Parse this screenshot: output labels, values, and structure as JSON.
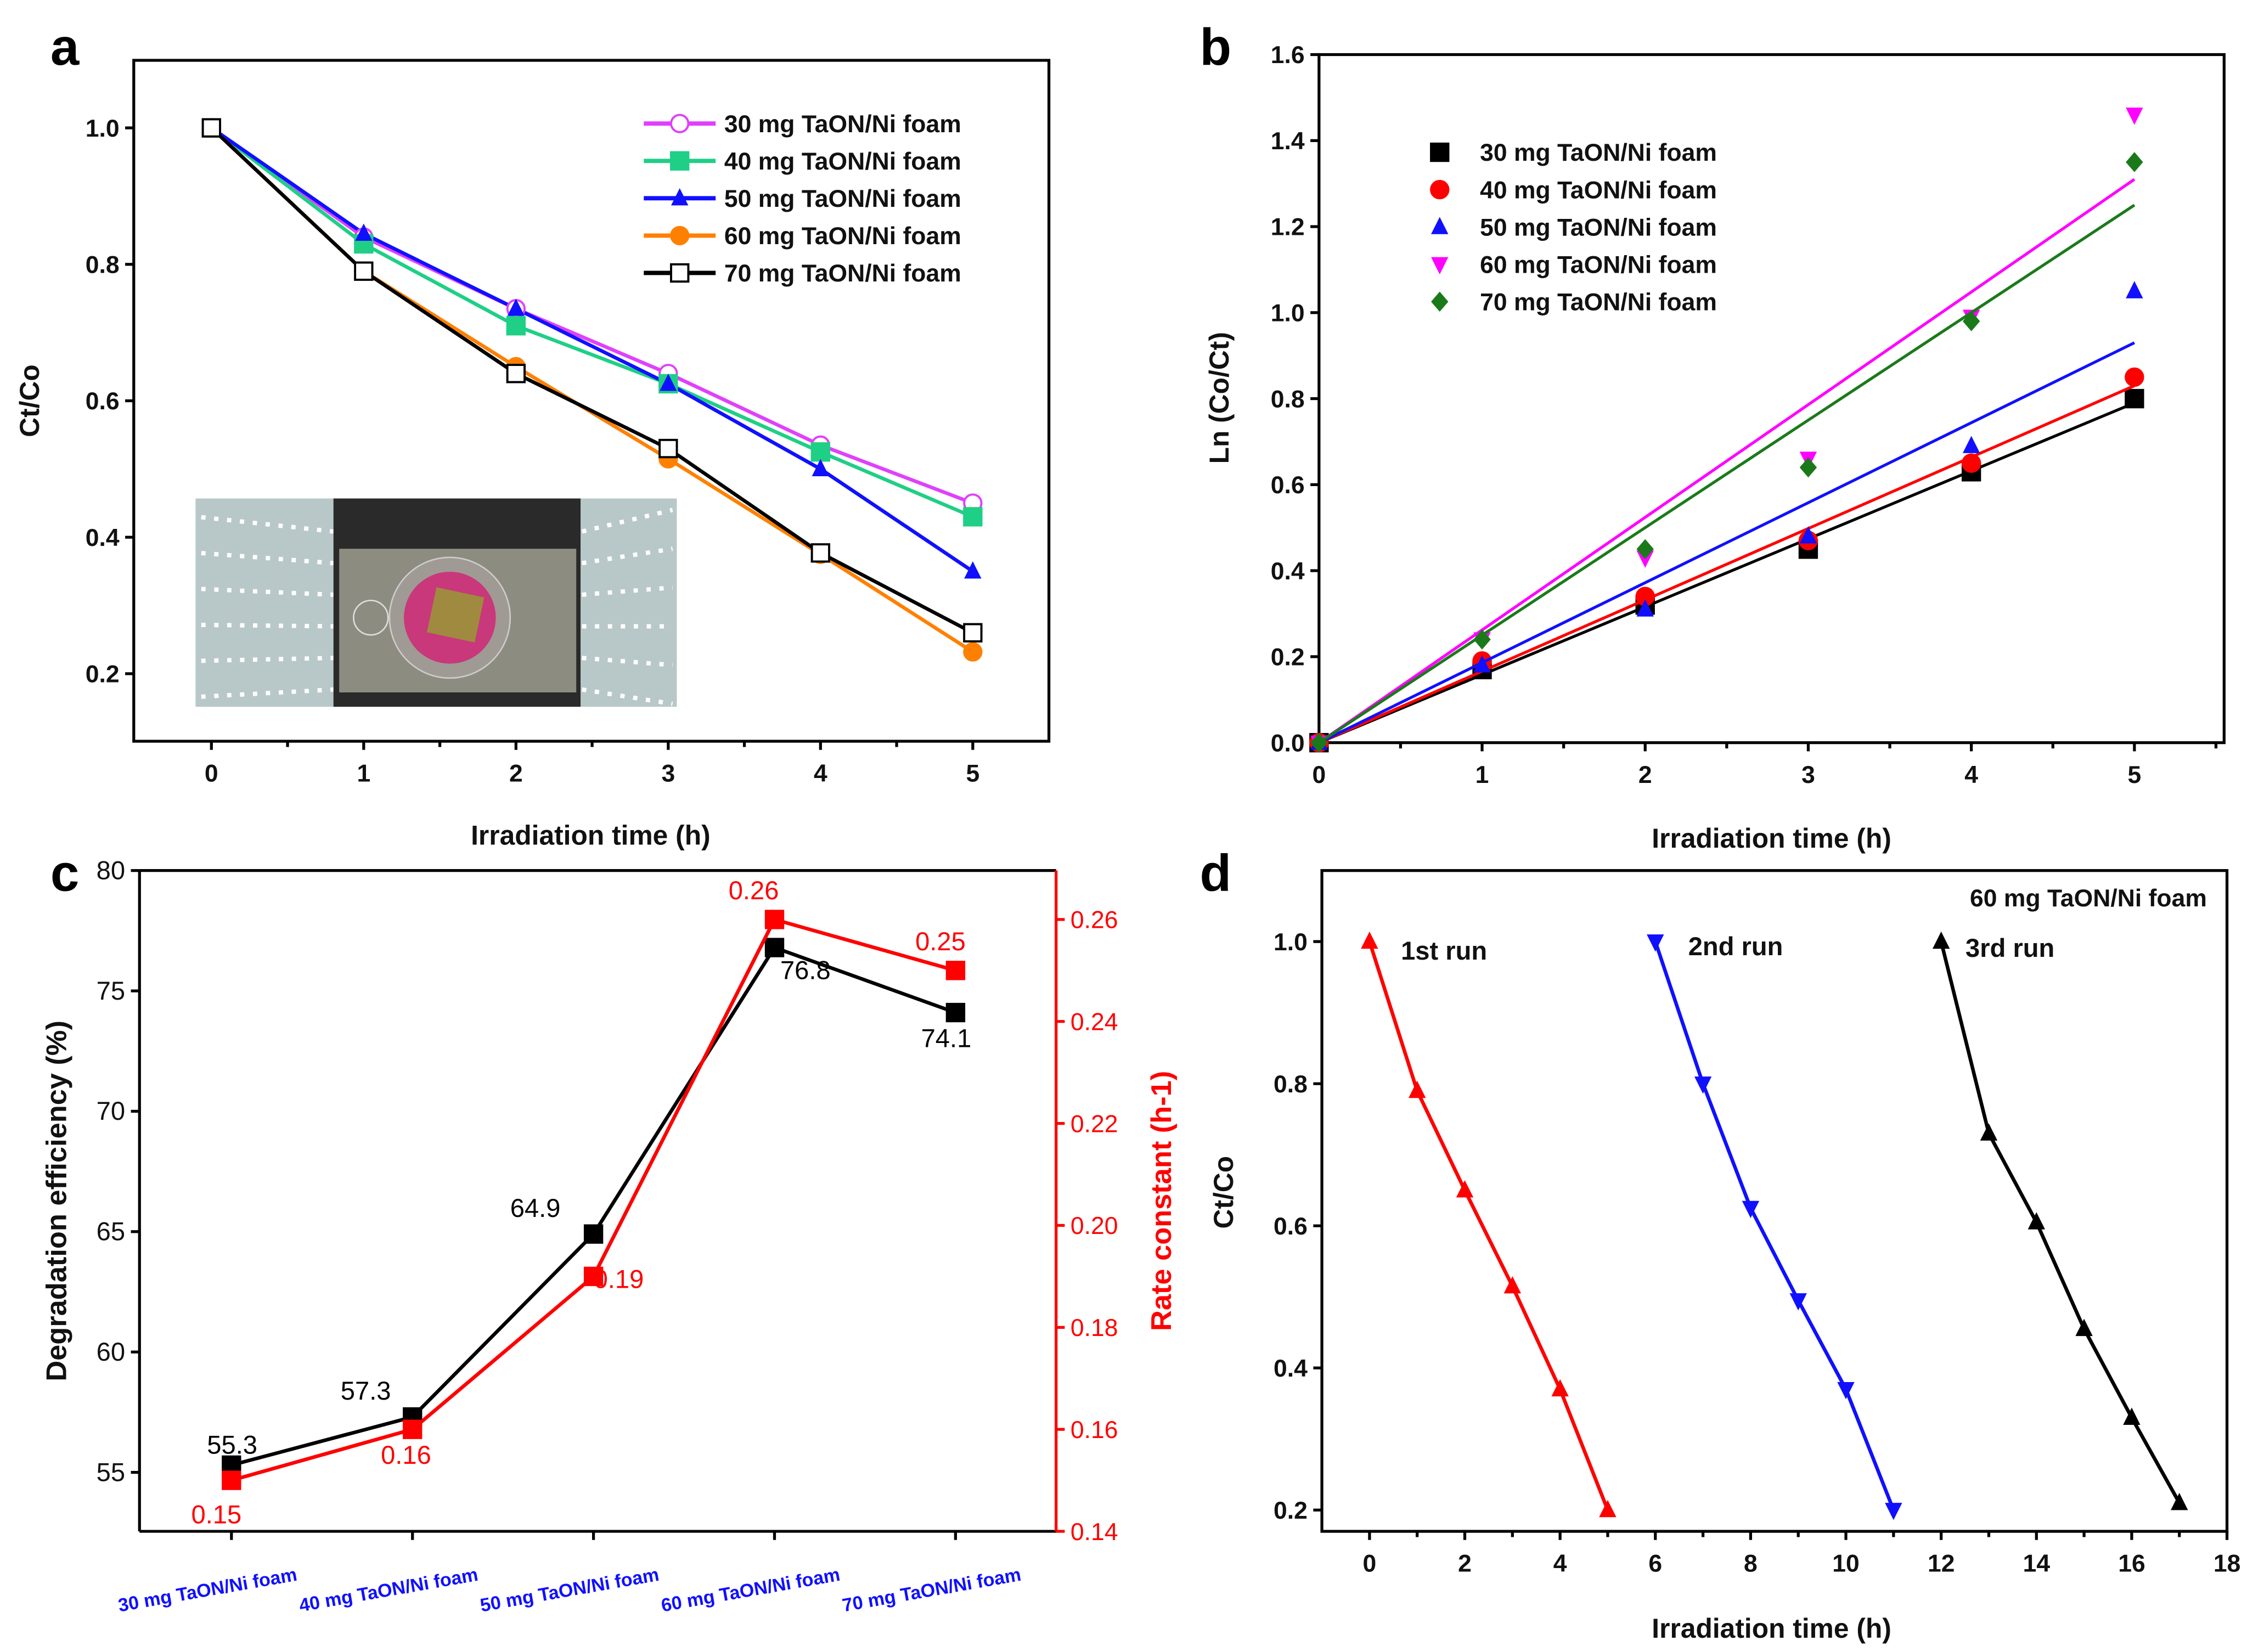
{
  "chart_data": [
    {
      "panel": "a",
      "type": "line",
      "xlabel": "Irradiation time (h)",
      "ylabel": "Ct/Co",
      "xlim": [
        -0.51,
        5.5
      ],
      "ylim": [
        0.101,
        1.099
      ],
      "xticks": [
        0,
        1,
        2,
        3,
        4,
        5
      ],
      "yticks": [
        0.2,
        0.4,
        0.6,
        0.8,
        1.0
      ],
      "legend_position": "top-right",
      "inset": "photo of reactor with TaON/Ni foam sample",
      "x": [
        0,
        1,
        2,
        3,
        4,
        5
      ],
      "series": [
        {
          "name": "30 mg TaON/Ni foam",
          "color": "#e040fb",
          "marker": "open-circle",
          "values": [
            1.0,
            0.84,
            0.735,
            0.64,
            0.535,
            0.45
          ]
        },
        {
          "name": "40 mg TaON/Ni foam",
          "color": "#1fcf86",
          "marker": "square",
          "values": [
            1.0,
            0.83,
            0.71,
            0.625,
            0.525,
            0.43
          ]
        },
        {
          "name": "50 mg TaON/Ni foam",
          "color": "#1010ff",
          "marker": "triangle",
          "values": [
            1.0,
            0.845,
            0.735,
            0.625,
            0.5,
            0.35
          ]
        },
        {
          "name": "60 mg TaON/Ni foam",
          "color": "#ff8000",
          "marker": "circle",
          "values": [
            1.0,
            0.79,
            0.65,
            0.515,
            0.375,
            0.232
          ]
        },
        {
          "name": "70 mg TaON/Ni foam",
          "color": "#000000",
          "marker": "open-square",
          "values": [
            1.0,
            0.79,
            0.64,
            0.53,
            0.377,
            0.26
          ]
        }
      ]
    },
    {
      "panel": "b",
      "type": "scatter",
      "xlabel": "Irradiation time (h)",
      "ylabel": "Ln (Co/Ct)",
      "xlim": [
        0,
        5.55
      ],
      "ylim": [
        0,
        1.6
      ],
      "xticks": [
        0,
        1,
        2,
        3,
        4,
        5
      ],
      "yticks": [
        0.0,
        0.2,
        0.4,
        0.6,
        0.8,
        1.0,
        1.2,
        1.4,
        1.6
      ],
      "legend_position": "top-left",
      "x": [
        0,
        1,
        2,
        3,
        4,
        5
      ],
      "series": [
        {
          "name": "30 mg TaON/Ni foam",
          "color": "#000000",
          "marker": "square",
          "values": [
            0,
            0.17,
            0.32,
            0.45,
            0.63,
            0.8
          ],
          "fit_slope": 0.158
        },
        {
          "name": "40 mg TaON/Ni foam",
          "color": "#ff0000",
          "marker": "circle",
          "values": [
            0,
            0.19,
            0.34,
            0.47,
            0.65,
            0.85
          ],
          "fit_slope": 0.166
        },
        {
          "name": "50 mg TaON/Ni foam",
          "color": "#1010ff",
          "marker": "triangle",
          "values": [
            0,
            0.18,
            0.31,
            0.48,
            0.69,
            1.05
          ],
          "fit_slope": 0.186
        },
        {
          "name": "60 mg TaON/Ni foam",
          "color": "#ff00ff",
          "marker": "down-triangle",
          "values": [
            0,
            0.24,
            0.43,
            0.66,
            0.99,
            1.46
          ],
          "fit_slope": 0.262
        },
        {
          "name": "70 mg TaON/Ni foam",
          "color": "#1a7a1a",
          "marker": "diamond",
          "values": [
            0,
            0.24,
            0.45,
            0.64,
            0.98,
            1.35
          ],
          "fit_slope": 0.25
        }
      ]
    },
    {
      "panel": "c",
      "type": "line",
      "ylabel": "Degradation efficiency (%)",
      "ylabel_right": "Rate constant (h-1)",
      "categories": [
        "30 mg TaON/Ni foam",
        "40 mg TaON/Ni foam",
        "50 mg TaON/Ni foam",
        "60 mg TaON/Ni foam",
        "70 mg TaON/Ni foam"
      ],
      "ylim": [
        52.55,
        80
      ],
      "ylim_right": [
        0.14,
        0.2696
      ],
      "yticks": [
        55,
        60,
        65,
        70,
        75,
        80
      ],
      "yticks_right": [
        0.14,
        0.16,
        0.18,
        0.2,
        0.22,
        0.24,
        0.26
      ],
      "series": [
        {
          "name": "Degradation efficiency",
          "axis": "left",
          "color": "#000000",
          "values": [
            55.3,
            57.3,
            64.9,
            76.8,
            74.1
          ],
          "labels": [
            "55.3",
            "57.3",
            "64.9",
            "76.8",
            "74.1"
          ]
        },
        {
          "name": "Rate constant",
          "axis": "right",
          "color": "#ff0000",
          "values": [
            0.15,
            0.16,
            0.19,
            0.26,
            0.25
          ],
          "labels": [
            "0.15",
            "0.16",
            "0.19",
            "0.26",
            "0.25"
          ]
        }
      ]
    },
    {
      "panel": "d",
      "type": "line",
      "xlabel": "Irradiation time (h)",
      "ylabel": "Ct/Co",
      "xlim": [
        -1,
        18
      ],
      "ylim": [
        0.17,
        1.1
      ],
      "xticks": [
        0,
        2,
        4,
        6,
        8,
        10,
        12,
        14,
        16,
        18
      ],
      "yticks": [
        0.2,
        0.4,
        0.6,
        0.8,
        1.0
      ],
      "annotation": "60 mg TaON/Ni foam",
      "series": [
        {
          "name": "1st run",
          "color": "#ff0000",
          "marker": "triangle",
          "x": [
            0,
            1,
            2,
            3,
            4,
            5
          ],
          "values": [
            1.0,
            0.79,
            0.65,
            0.515,
            0.37,
            0.2
          ]
        },
        {
          "name": "2nd run",
          "color": "#1010ff",
          "marker": "down-triangle",
          "x": [
            6,
            7,
            8,
            9,
            10,
            11
          ],
          "values": [
            1.0,
            0.8,
            0.625,
            0.495,
            0.37,
            0.2
          ]
        },
        {
          "name": "3rd run",
          "color": "#000000",
          "marker": "triangle",
          "x": [
            12,
            13,
            14,
            15,
            16,
            17
          ],
          "values": [
            1.0,
            0.73,
            0.605,
            0.455,
            0.33,
            0.21
          ]
        }
      ]
    }
  ],
  "panel_labels": [
    "a",
    "b",
    "c",
    "d"
  ]
}
